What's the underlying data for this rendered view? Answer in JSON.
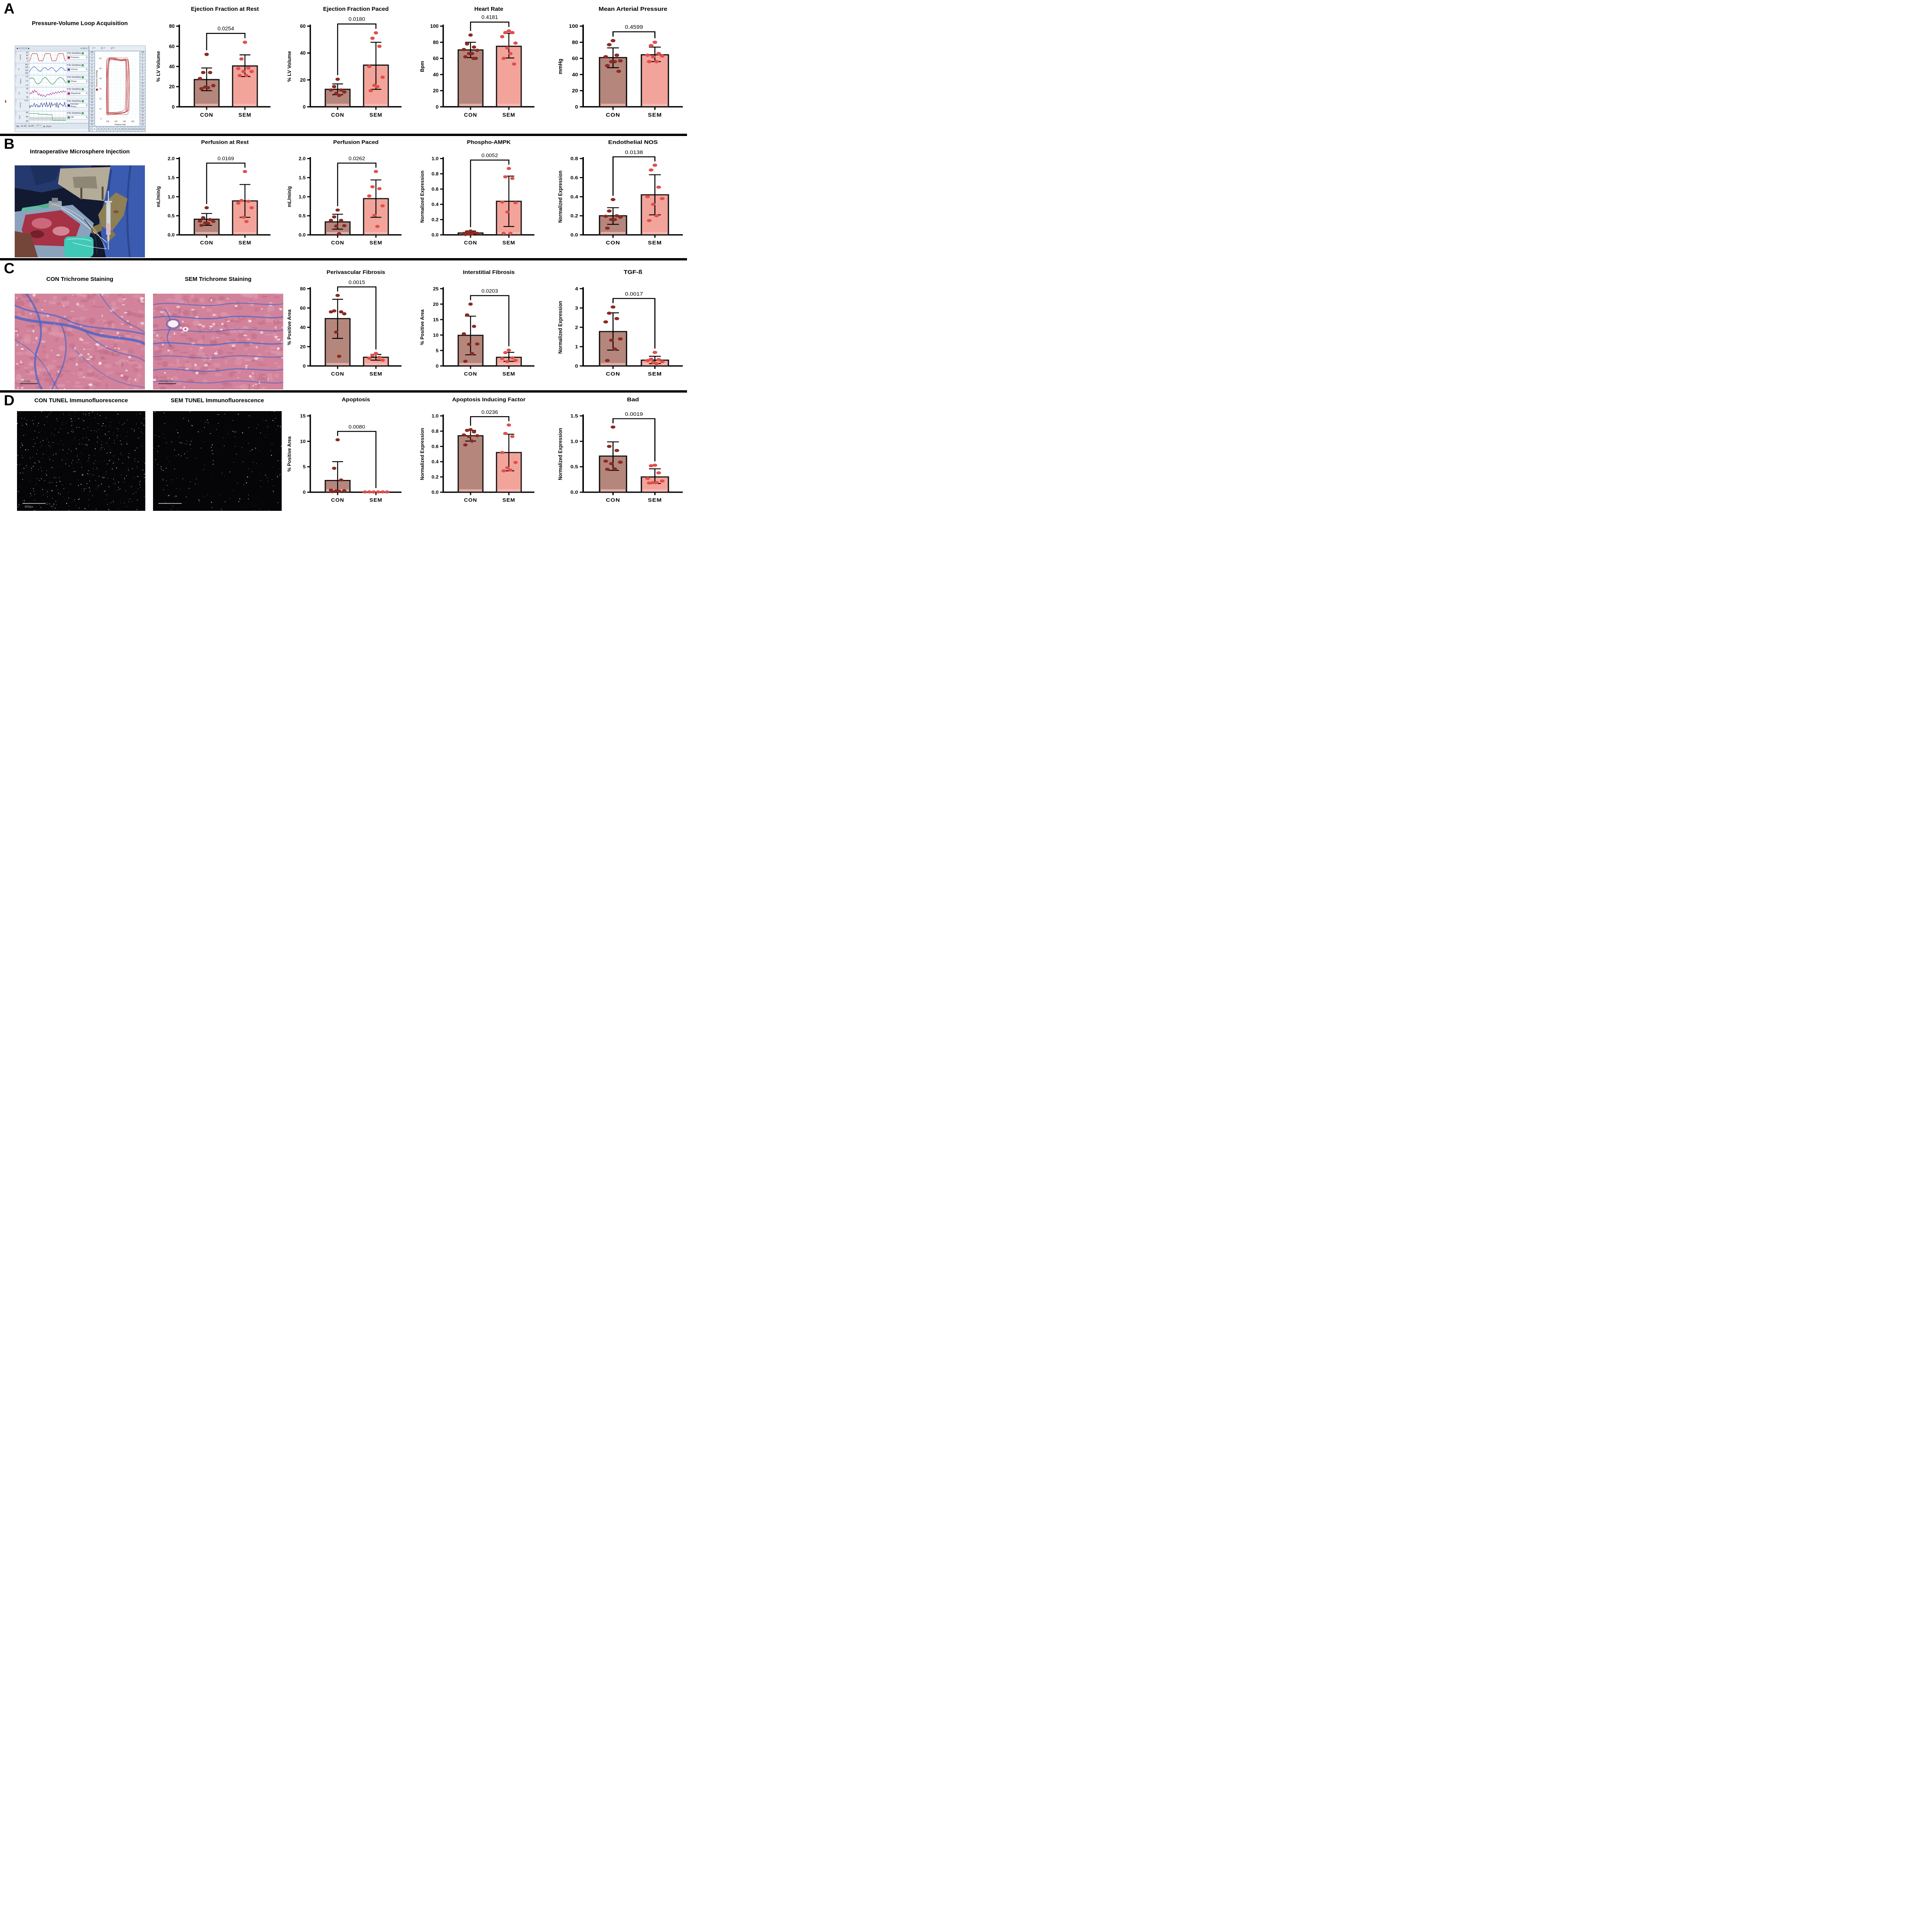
{
  "panels": [
    {
      "letter": "A"
    },
    {
      "letter": "B"
    },
    {
      "letter": "C"
    },
    {
      "letter": "D"
    }
  ],
  "panel_a": {
    "image_title": "Pressure-Volume Loop Acquisition",
    "software": {
      "toolbar": {
        "nav_numbers": [
          "4",
          "5",
          "6"
        ],
        "rate": "1k /s"
      },
      "sampling_label": "No Sampling",
      "channels": [
        {
          "unit": "mmHg",
          "scale": [
            "60",
            "40",
            "20",
            "0"
          ],
          "name": "Pressure",
          "color": "#cc2222",
          "kind": "pressure"
        },
        {
          "unit": "ml",
          "scale": [
            "160",
            "140",
            "120",
            "100"
          ],
          "name": "Volume",
          "color": "#3355bb",
          "kind": "volume"
        },
        {
          "unit": "degree",
          "scale": [
            "1.8",
            "1.6",
            "1.4"
          ],
          "name": "Phase",
          "color": "#2a7a3b",
          "kind": "phase"
        },
        {
          "unit": "mS",
          "scale": [
            "18",
            "17",
            "16"
          ],
          "name": "Magnitude",
          "color": "#b3258f",
          "kind": "magnitude"
        },
        {
          "unit": "mmHg",
          "scale": [
            "4.70"
          ],
          "name": "Femoral Press...",
          "color": "#232a8f",
          "kind": "femoral"
        },
        {
          "unit": "BPM",
          "scale": [
            "86",
            "84",
            "82"
          ],
          "name": "HR",
          "color": "#3aa06a",
          "kind": "hr"
        }
      ],
      "time_labels": [
        "11:29",
        "11:30"
      ],
      "ratio": "10:1",
      "start_label": "Start",
      "xy_header": [
        "x =",
        "y1 =",
        "y2 ="
      ],
      "side_numbers": [
        "Off",
        "1",
        "2",
        "3",
        "4",
        "5",
        "6",
        "7",
        "8",
        "9",
        "10",
        "11",
        "12",
        "13",
        "14",
        "15",
        "16",
        "17",
        "18",
        "19",
        "20",
        "21",
        "22",
        "23"
      ],
      "bottom_tabs": [
        "1",
        "2",
        "3",
        "4",
        "5",
        "6",
        "7",
        "8",
        "9",
        "10",
        "11",
        "12",
        "13",
        "14",
        "15",
        "16"
      ],
      "active_tab": "2",
      "loop_plot": {
        "xlabel": "Volume (ml)",
        "ylabel": "Pressure (mmHg)",
        "xticks": [
          "100",
          "120",
          "140",
          "160"
        ],
        "yticks": [
          "0",
          "10",
          "20",
          "30",
          "40",
          "50",
          "60"
        ],
        "loop_color": "#b22222",
        "num_loops": 7
      }
    }
  },
  "panel_b": {
    "image_title": "Intraoperative Microsphere Injection"
  },
  "panel_c": {
    "image_titles": [
      "CON Trichrome Staining",
      "SEM Trichrome Staining"
    ],
    "scale_bar": "100 µm"
  },
  "panel_d": {
    "image_titles": [
      "CON TUNEL Immunofluorescence",
      "SEM TUNEL Immunofluorescence"
    ],
    "scale_bar": "800px",
    "dot_counts": {
      "con": 520,
      "sem": 210
    }
  },
  "colors": {
    "con_bar": "#b5867c",
    "sem_bar": "#f2a49b",
    "con_strip": "#ecb7b3",
    "sem_strip": "#f8bcb8",
    "con_dot": "#8a2a24",
    "sem_dot": "#e0504a",
    "outline": "#111111"
  },
  "chart_data": [
    {
      "type": "bar",
      "panel": "A",
      "col": 1,
      "title": "Ejection Fraction at Rest",
      "ylabel": "% LV Volume",
      "ylim": [
        0,
        80
      ],
      "yticks": [
        "0",
        "20",
        "40",
        "60",
        "80"
      ],
      "p_value": "0.0254",
      "categories": [
        "CON",
        "SEM"
      ],
      "series": [
        {
          "name": "CON",
          "mean": 27,
          "sd_range": [
            16,
            38.5
          ],
          "points": [
            52,
            34,
            34,
            28,
            21,
            19.5,
            19,
            18
          ]
        },
        {
          "name": "SEM",
          "mean": 40.5,
          "sd_range": [
            30,
            51.5
          ],
          "points": [
            64,
            47.5,
            38.5,
            38,
            35,
            35,
            31,
            31
          ]
        }
      ]
    },
    {
      "type": "bar",
      "panel": "A",
      "col": 2,
      "title": "Ejection Fraction Paced",
      "ylabel": "% LV Volume",
      "ylim": [
        0,
        60
      ],
      "yticks": [
        "0",
        "20",
        "40",
        "60"
      ],
      "p_value": "0.0180",
      "categories": [
        "CON",
        "SEM"
      ],
      "series": [
        {
          "name": "CON",
          "mean": 13,
          "sd_range": [
            9,
            17
          ],
          "points": [
            20.5,
            15,
            12.5,
            12.5,
            11,
            10,
            8.5
          ]
        },
        {
          "name": "SEM",
          "mean": 31,
          "sd_range": [
            13,
            48
          ],
          "points": [
            55,
            51,
            45,
            30,
            22,
            16,
            15,
            12
          ]
        }
      ]
    },
    {
      "type": "bar",
      "panel": "A",
      "col": 3,
      "title": "Heart Rate",
      "ylabel": "Bpm",
      "ylim": [
        0,
        100
      ],
      "yticks": [
        "0",
        "20",
        "40",
        "60",
        "80",
        "100"
      ],
      "p_value": "0.4181",
      "categories": [
        "CON",
        "SEM"
      ],
      "series": [
        {
          "name": "CON",
          "mean": 70.5,
          "sd_range": [
            61,
            80
          ],
          "points": [
            89,
            78,
            74,
            71,
            70,
            66,
            66,
            62,
            60,
            60
          ]
        },
        {
          "name": "SEM",
          "mean": 75,
          "sd_range": [
            60.5,
            91
          ],
          "points": [
            94,
            92,
            92,
            87,
            79,
            73,
            66,
            60,
            53
          ]
        }
      ]
    },
    {
      "type": "bar",
      "panel": "A",
      "col": 4,
      "title": "Mean Arterial Pressure",
      "ylabel": "mmHg",
      "ylim": [
        0,
        100
      ],
      "yticks": [
        "0",
        "20",
        "40",
        "60",
        "80",
        "100"
      ],
      "p_value": "0.4599",
      "categories": [
        "CON",
        "SEM"
      ],
      "series": [
        {
          "name": "CON",
          "mean": 61,
          "sd_range": [
            48.5,
            73
          ],
          "points": [
            82,
            77,
            64,
            62,
            57,
            56,
            56,
            51,
            44
          ]
        },
        {
          "name": "SEM",
          "mean": 64.5,
          "sd_range": [
            56,
            74
          ],
          "points": [
            80,
            76,
            66,
            64,
            63,
            62,
            56,
            56
          ]
        }
      ]
    },
    {
      "type": "bar",
      "panel": "B",
      "col": 1,
      "title": "Perfusion at Rest",
      "ylabel": "mL/min/g",
      "ylim": [
        0,
        2
      ],
      "yticks": [
        "0.0",
        "0.5",
        "1.0",
        "1.5",
        "2.0"
      ],
      "p_value": "0.0169",
      "categories": [
        "CON",
        "SEM"
      ],
      "series": [
        {
          "name": "CON",
          "mean": 0.41,
          "sd_range": [
            0.25,
            0.56
          ],
          "points": [
            0.71,
            0.45,
            0.4,
            0.36,
            0.35,
            0.31,
            0.3,
            0.25
          ]
        },
        {
          "name": "SEM",
          "mean": 0.89,
          "sd_range": [
            0.46,
            1.32
          ],
          "points": [
            1.66,
            0.9,
            0.88,
            0.83,
            0.71,
            0.46,
            0.35
          ]
        }
      ]
    },
    {
      "type": "bar",
      "panel": "B",
      "col": 2,
      "title": "Perfusion Paced",
      "ylabel": "mL/min/g",
      "ylim": [
        0,
        2
      ],
      "yticks": [
        "0.0",
        "0.5",
        "1.0",
        "1.5",
        "2.0"
      ],
      "p_value": "0.0262",
      "categories": [
        "CON",
        "SEM"
      ],
      "series": [
        {
          "name": "CON",
          "mean": 0.34,
          "sd_range": [
            0.15,
            0.54
          ],
          "points": [
            0.65,
            0.47,
            0.38,
            0.38,
            0.24,
            0.23,
            0.03
          ]
        },
        {
          "name": "SEM",
          "mean": 0.95,
          "sd_range": [
            0.46,
            1.44
          ],
          "points": [
            1.66,
            1.26,
            1.21,
            1.02,
            0.76,
            0.51,
            0.22
          ]
        }
      ]
    },
    {
      "type": "bar",
      "panel": "B",
      "col": 3,
      "title": "Phospho-AMPK",
      "ylabel": "Normalized Expression",
      "ylim": [
        0,
        1
      ],
      "yticks": [
        "0.0",
        "0.2",
        "0.4",
        "0.6",
        "0.8",
        "1.0"
      ],
      "p_value": "0.0052",
      "categories": [
        "CON",
        "SEM"
      ],
      "series": [
        {
          "name": "CON",
          "mean": 0.025,
          "sd_range": [
            0.005,
            0.05
          ],
          "points": [
            0.05,
            0.04,
            0.03,
            0.02,
            0.02,
            0.01,
            0.01,
            0.005
          ]
        },
        {
          "name": "SEM",
          "mean": 0.44,
          "sd_range": [
            0.11,
            0.77
          ],
          "points": [
            0.87,
            0.76,
            0.74,
            0.43,
            0.42,
            0.3,
            0.02,
            0.02
          ]
        }
      ]
    },
    {
      "type": "bar",
      "panel": "B",
      "col": 4,
      "title": "Endothelial NOS",
      "ylabel": "Normalized Expression",
      "ylim": [
        0,
        0.8
      ],
      "yticks": [
        "0.0",
        "0.2",
        "0.4",
        "0.6",
        "0.8"
      ],
      "p_value": "0.0138",
      "categories": [
        "CON",
        "SEM"
      ],
      "series": [
        {
          "name": "CON",
          "mean": 0.2,
          "sd_range": [
            0.11,
            0.285
          ],
          "points": [
            0.37,
            0.25,
            0.2,
            0.195,
            0.185,
            0.16,
            0.16,
            0.07
          ]
        },
        {
          "name": "SEM",
          "mean": 0.42,
          "sd_range": [
            0.21,
            0.63
          ],
          "points": [
            0.73,
            0.68,
            0.5,
            0.4,
            0.38,
            0.32,
            0.2,
            0.15
          ]
        }
      ]
    },
    {
      "type": "bar",
      "panel": "C",
      "col": 2,
      "title": "Perivascular Fibrosis",
      "ylabel": "% Positive Area",
      "ylim": [
        0,
        80
      ],
      "yticks": [
        "0",
        "20",
        "40",
        "60",
        "80"
      ],
      "p_value": "0.0015",
      "categories": [
        "CON",
        "SEM"
      ],
      "series": [
        {
          "name": "CON",
          "mean": 49,
          "sd_range": [
            28.5,
            69
          ],
          "points": [
            73,
            57,
            56,
            56,
            54,
            35,
            10
          ]
        },
        {
          "name": "SEM",
          "mean": 9,
          "sd_range": [
            6,
            12
          ],
          "points": [
            13,
            11,
            9,
            8,
            6
          ]
        }
      ]
    },
    {
      "type": "bar",
      "panel": "C",
      "col": 3,
      "title": "Interstitial Fibrosis",
      "ylabel": "% Positive Area",
      "ylim": [
        0,
        25
      ],
      "yticks": [
        "0",
        "5",
        "10",
        "15",
        "20",
        "25"
      ],
      "p_value": "0.0203",
      "categories": [
        "CON",
        "SEM"
      ],
      "series": [
        {
          "name": "CON",
          "mean": 9.9,
          "sd_range": [
            3.6,
            16.1
          ],
          "points": [
            20,
            16.5,
            12.8,
            10.4,
            7.1,
            7,
            4,
            1.5
          ]
        },
        {
          "name": "SEM",
          "mean": 2.8,
          "sd_range": [
            1.5,
            4.4
          ],
          "points": [
            5.1,
            4.3,
            2.6,
            2.4,
            1.8,
            1.4
          ]
        }
      ]
    },
    {
      "type": "bar",
      "panel": "C",
      "col": 4,
      "title": "TGF-ß",
      "ylabel": "Normalized Expression",
      "ylim": [
        0,
        4
      ],
      "yticks": [
        "0",
        "1",
        "2",
        "3",
        "4"
      ],
      "p_value": "0.0017",
      "categories": [
        "CON",
        "SEM"
      ],
      "series": [
        {
          "name": "CON",
          "mean": 1.78,
          "sd_range": [
            0.82,
            2.75
          ],
          "points": [
            3.05,
            2.73,
            2.45,
            2.28,
            1.4,
            1.33,
            0.88,
            0.28
          ]
        },
        {
          "name": "SEM",
          "mean": 0.3,
          "sd_range": [
            0.12,
            0.5
          ],
          "points": [
            0.7,
            0.35,
            0.33,
            0.28,
            0.22,
            0.18,
            0.12
          ]
        }
      ]
    },
    {
      "type": "bar",
      "panel": "D",
      "col": 2,
      "title": "Apoptosis",
      "ylabel": "% Positive Area",
      "ylim": [
        0,
        15
      ],
      "yticks": [
        "0",
        "5",
        "10",
        "15"
      ],
      "p_value": "0.0080",
      "categories": [
        "CON",
        "SEM"
      ],
      "series": [
        {
          "name": "CON",
          "mean": 2.3,
          "sd_range": [
            0,
            6
          ],
          "points": [
            10.3,
            4.7,
            2.4,
            0.4,
            0.3,
            0.25,
            0.2,
            0.1
          ]
        },
        {
          "name": "SEM",
          "mean": 0.06,
          "sd_range": null,
          "points": [
            0.05,
            0.06,
            0.05,
            0.05,
            0.06,
            0.05
          ]
        }
      ]
    },
    {
      "type": "bar",
      "panel": "D",
      "col": 3,
      "title": "Apoptosis Inducing Factor",
      "ylabel": "Normalized Expression",
      "ylim": [
        0,
        1
      ],
      "yticks": [
        "0.0",
        "0.2",
        "0.4",
        "0.6",
        "0.8",
        "1.0"
      ],
      "p_value": "0.0236",
      "categories": [
        "CON",
        "SEM"
      ],
      "series": [
        {
          "name": "CON",
          "mean": 0.74,
          "sd_range": [
            0.67,
            0.81
          ],
          "points": [
            0.82,
            0.81,
            0.79,
            0.75,
            0.74,
            0.73,
            0.67,
            0.62
          ]
        },
        {
          "name": "SEM",
          "mean": 0.52,
          "sd_range": [
            0.28,
            0.76
          ],
          "points": [
            0.88,
            0.77,
            0.73,
            0.52,
            0.39,
            0.32,
            0.29,
            0.28
          ]
        }
      ]
    },
    {
      "type": "bar",
      "panel": "D",
      "col": 4,
      "title": "Bad",
      "ylabel": "Normalized Expression",
      "ylim": [
        0,
        1.5
      ],
      "yticks": [
        "0.0",
        "0.5",
        "1.0",
        "1.5"
      ],
      "p_value": "0.0019",
      "categories": [
        "CON",
        "SEM"
      ],
      "series": [
        {
          "name": "CON",
          "mean": 0.71,
          "sd_range": [
            0.43,
            0.99
          ],
          "points": [
            1.28,
            0.9,
            0.82,
            0.61,
            0.59,
            0.56,
            0.46,
            0.45
          ]
        },
        {
          "name": "SEM",
          "mean": 0.3,
          "sd_range": [
            0.17,
            0.46
          ],
          "points": [
            0.53,
            0.52,
            0.38,
            0.27,
            0.22,
            0.19,
            0.19,
            0.18
          ]
        }
      ]
    }
  ]
}
